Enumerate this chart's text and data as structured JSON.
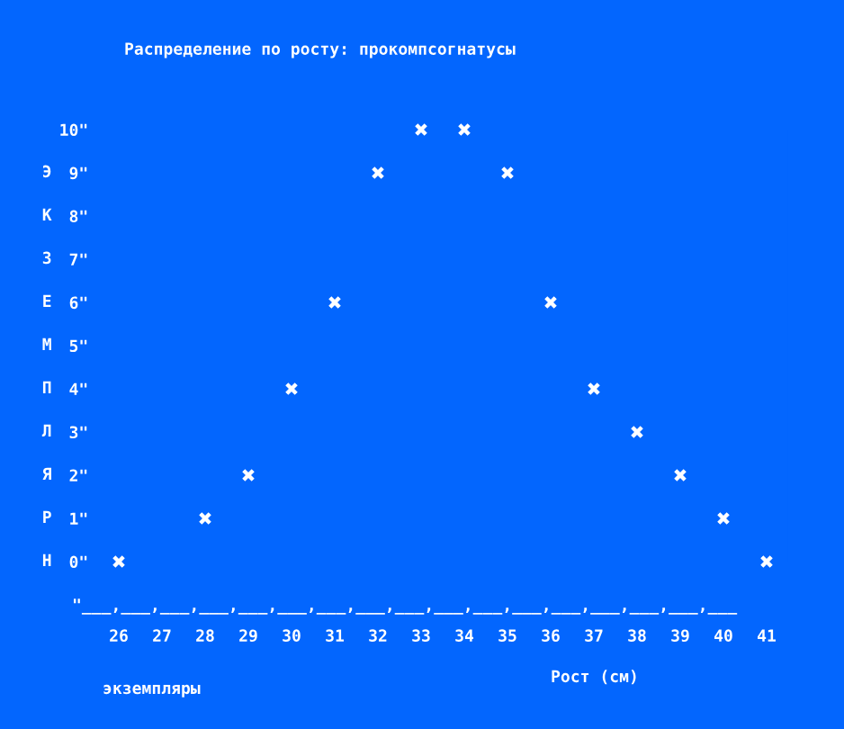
{
  "chart_data": {
    "type": "scatter",
    "title": "Распределение по росту: прокомпсогнатусы",
    "xlabel": "Рост (см)",
    "categories": [
      "26",
      "27",
      "28",
      "29",
      "30",
      "31",
      "32",
      "33",
      "34",
      "35",
      "36",
      "37",
      "38",
      "39",
      "40",
      "41"
    ],
    "series": [
      {
        "color": "#ffffff",
        "values": [
          0,
          null,
          1,
          2,
          4,
          6,
          9,
          10,
          10,
          9,
          6,
          4,
          3,
          2,
          1,
          0
        ]
      }
    ],
    "ylim": [
      0,
      10
    ],
    "yticks": [
      {
        "value": 10,
        "label": "10\""
      },
      {
        "value": 9,
        "label": "9\""
      },
      {
        "value": 8,
        "label": "8\""
      },
      {
        "value": 7,
        "label": "7\""
      },
      {
        "value": 6,
        "label": "6\""
      },
      {
        "value": 5,
        "label": "5\""
      },
      {
        "value": 4,
        "label": "4\""
      },
      {
        "value": 3,
        "label": "3\""
      },
      {
        "value": 2,
        "label": "2\""
      },
      {
        "value": 1,
        "label": "1\""
      },
      {
        "value": 0,
        "label": "0\""
      }
    ],
    "annotations": [
      "\"___,___,___,___,___,___,___,___,___,___,___,___,___,___,___,___,___",
      "ЭКЗЕМПЛЯРН",
      "экземпляры"
    ],
    "marker": "cross",
    "grid": false,
    "legend": false
  }
}
